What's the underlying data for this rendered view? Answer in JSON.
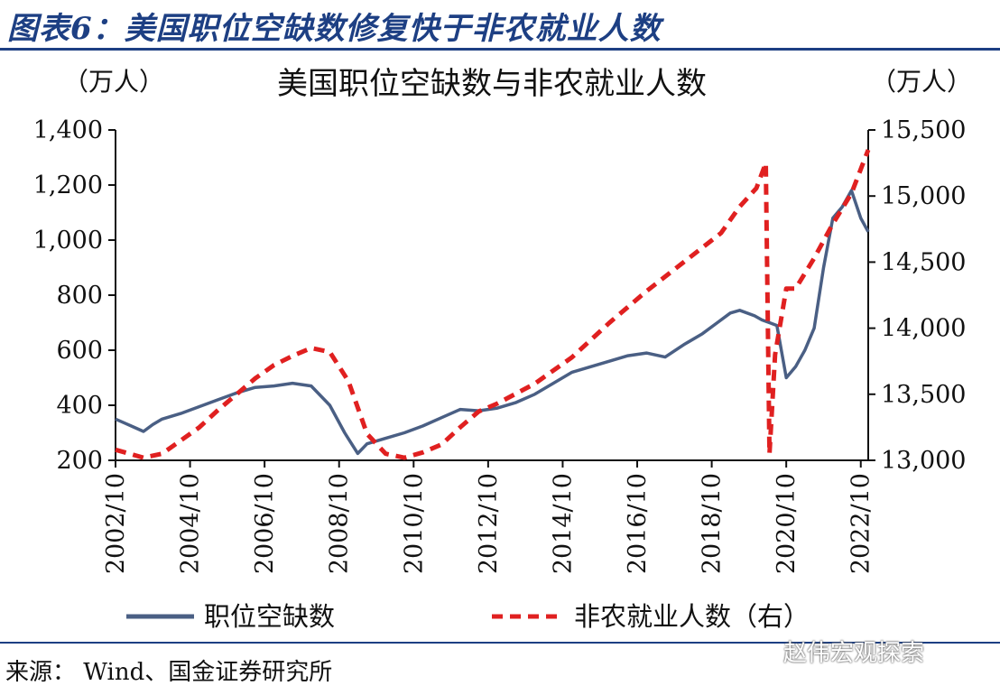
{
  "figure": {
    "title": "图表6：美国职位空缺数修复快于非农就业人数",
    "source": "来源： Wind、国金证券研究所",
    "watermark": "赵伟宏观探索"
  },
  "colors": {
    "accent": "#1d3f83",
    "vacancy_line": "#4a5f84",
    "payroll_line": "#e02020"
  },
  "chart_data": {
    "type": "line",
    "title": "美国职位空缺数与非农就业人数",
    "left_unit": "（万人）",
    "right_unit": "（万人）",
    "x_ticks": [
      "2002/10",
      "2004/10",
      "2006/10",
      "2008/10",
      "2010/10",
      "2012/10",
      "2014/10",
      "2016/10",
      "2018/10",
      "2020/10",
      "2022/10"
    ],
    "x_range": [
      2002.75,
      2022.95
    ],
    "ylim_left": [
      200,
      1400
    ],
    "ylim_right": [
      13000,
      15500
    ],
    "yticks_left": [
      "200",
      "400",
      "600",
      "800",
      "1,000",
      "1,200",
      "1,400"
    ],
    "yticks_right": [
      "13,000",
      "13,500",
      "14,000",
      "14,500",
      "15,000",
      "15,500"
    ],
    "grid": false,
    "legend_position": "bottom",
    "series": [
      {
        "name": "职位空缺数",
        "axis": "left",
        "style": "solid",
        "x": [
          2002.75,
          2003.0,
          2003.25,
          2003.5,
          2003.75,
          2004.0,
          2004.5,
          2005.0,
          2005.5,
          2006.0,
          2006.5,
          2007.0,
          2007.5,
          2008.0,
          2008.5,
          2008.9,
          2009.25,
          2009.5,
          2010.0,
          2010.5,
          2011.0,
          2011.5,
          2012.0,
          2012.5,
          2013.0,
          2013.5,
          2014.0,
          2014.5,
          2015.0,
          2015.5,
          2016.0,
          2016.5,
          2017.0,
          2017.5,
          2018.0,
          2018.5,
          2018.9,
          2019.25,
          2019.5,
          2019.9,
          2020.1,
          2020.3,
          2020.5,
          2020.75,
          2021.0,
          2021.25,
          2021.5,
          2021.75,
          2022.0,
          2022.25,
          2022.5,
          2022.75,
          2022.95
        ],
        "values": [
          350,
          335,
          320,
          305,
          330,
          350,
          370,
          395,
          420,
          445,
          465,
          470,
          480,
          470,
          400,
          300,
          225,
          260,
          280,
          300,
          325,
          355,
          385,
          380,
          390,
          410,
          440,
          480,
          520,
          540,
          560,
          580,
          590,
          575,
          620,
          660,
          700,
          735,
          745,
          725,
          710,
          700,
          690,
          500,
          540,
          600,
          680,
          900,
          1080,
          1120,
          1180,
          1080,
          1030
        ]
      },
      {
        "name": "非农就业人数（右）",
        "axis": "right",
        "style": "dashed",
        "x": [
          2002.75,
          2003.0,
          2003.5,
          2004.0,
          2004.5,
          2005.0,
          2005.5,
          2006.0,
          2006.5,
          2007.0,
          2007.5,
          2008.0,
          2008.5,
          2009.0,
          2009.5,
          2010.0,
          2010.5,
          2011.0,
          2011.5,
          2012.0,
          2012.5,
          2013.0,
          2014.0,
          2015.0,
          2016.0,
          2017.0,
          2018.0,
          2019.0,
          2019.5,
          2019.95,
          2020.2,
          2020.3,
          2020.45,
          2020.6,
          2020.75,
          2021.0,
          2021.5,
          2022.0,
          2022.5,
          2022.95
        ],
        "values": [
          13080,
          13060,
          13020,
          13050,
          13150,
          13250,
          13380,
          13500,
          13620,
          13720,
          13790,
          13850,
          13820,
          13600,
          13200,
          13050,
          13020,
          13060,
          13120,
          13250,
          13370,
          13430,
          13580,
          13780,
          14040,
          14280,
          14500,
          14720,
          14920,
          15060,
          15250,
          13050,
          13800,
          14050,
          14300,
          14300,
          14530,
          14790,
          15020,
          15350
        ]
      }
    ]
  }
}
